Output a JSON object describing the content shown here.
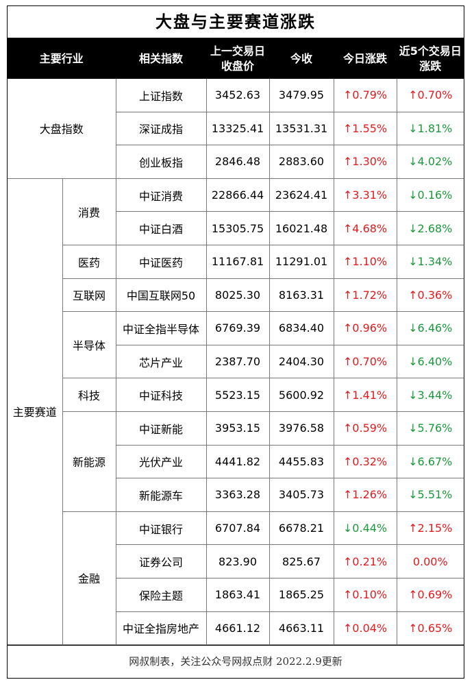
{
  "title": "大盘与主要赛道涨跌",
  "header": [
    "主要行业",
    "相关指数",
    "上一交易日收盘价",
    "今收",
    "今日涨跌",
    "近5个交易日涨跌"
  ],
  "groups": [
    {
      "name": "大盘指数",
      "rows": [
        [
          "上证指数",
          "3452.63",
          "3479.95",
          "↑0.79%",
          "↑0.70%"
        ],
        [
          "深证成指",
          "13325.41",
          "13531.31",
          "↑1.55%",
          "↓1.81%"
        ],
        [
          "创业板指",
          "2846.48",
          "2883.60",
          "↑1.30%",
          "↓4.02%"
        ]
      ]
    },
    {
      "name": "主要赛道",
      "subgroups": [
        {
          "name": "消费",
          "rows": [
            [
              "中证消费",
              "22866.44",
              "23624.41",
              "↑3.31%",
              "↓0.16%"
            ],
            [
              "中证白酒",
              "15305.75",
              "16021.48",
              "↑4.68%",
              "↓2.68%"
            ]
          ]
        },
        {
          "name": "医药",
          "rows": [
            [
              "中证医药",
              "11167.81",
              "11291.01",
              "↑1.10%",
              "↓1.34%"
            ]
          ]
        },
        {
          "name": "互联网",
          "rows": [
            [
              "中国互联网50",
              "8025.30",
              "8163.31",
              "↑1.72%",
              "↑0.36%"
            ]
          ]
        },
        {
          "name": "半导体",
          "rows": [
            [
              "中证全指半导体",
              "6769.39",
              "6834.40",
              "↑0.96%",
              "↓6.46%"
            ],
            [
              "芯片产业",
              "2387.70",
              "2404.30",
              "↑0.70%",
              "↓6.40%"
            ]
          ]
        },
        {
          "name": "科技",
          "rows": [
            [
              "中证科技",
              "5523.15",
              "5600.92",
              "↑1.41%",
              "↓3.44%"
            ]
          ]
        },
        {
          "name": "新能源",
          "rows": [
            [
              "中证新能",
              "3953.15",
              "3976.58",
              "↑0.59%",
              "↓5.76%"
            ],
            [
              "光伏产业",
              "4441.82",
              "4455.83",
              "↑0.32%",
              "↓6.67%"
            ],
            [
              "新能源车",
              "3363.28",
              "3405.73",
              "↑1.26%",
              "↓5.51%"
            ]
          ]
        },
        {
          "name": "金融",
          "rows": [
            [
              "中证银行",
              "6707.84",
              "6678.21",
              "↓0.44%",
              "↑2.15%"
            ],
            [
              "证券公司",
              "823.90",
              "825.67",
              "↑0.21%",
              "0.00%"
            ],
            [
              "保险主题",
              "1863.41",
              "1865.25",
              "↑0.10%",
              "↑0.69%"
            ],
            [
              "中证全指房地产",
              "4661.12",
              "4663.11",
              "↑0.04%",
              "↑0.65%"
            ]
          ]
        }
      ]
    }
  ],
  "footer": "网叔制表，关注公众号网叔点财 2022.2.9更新"
}
